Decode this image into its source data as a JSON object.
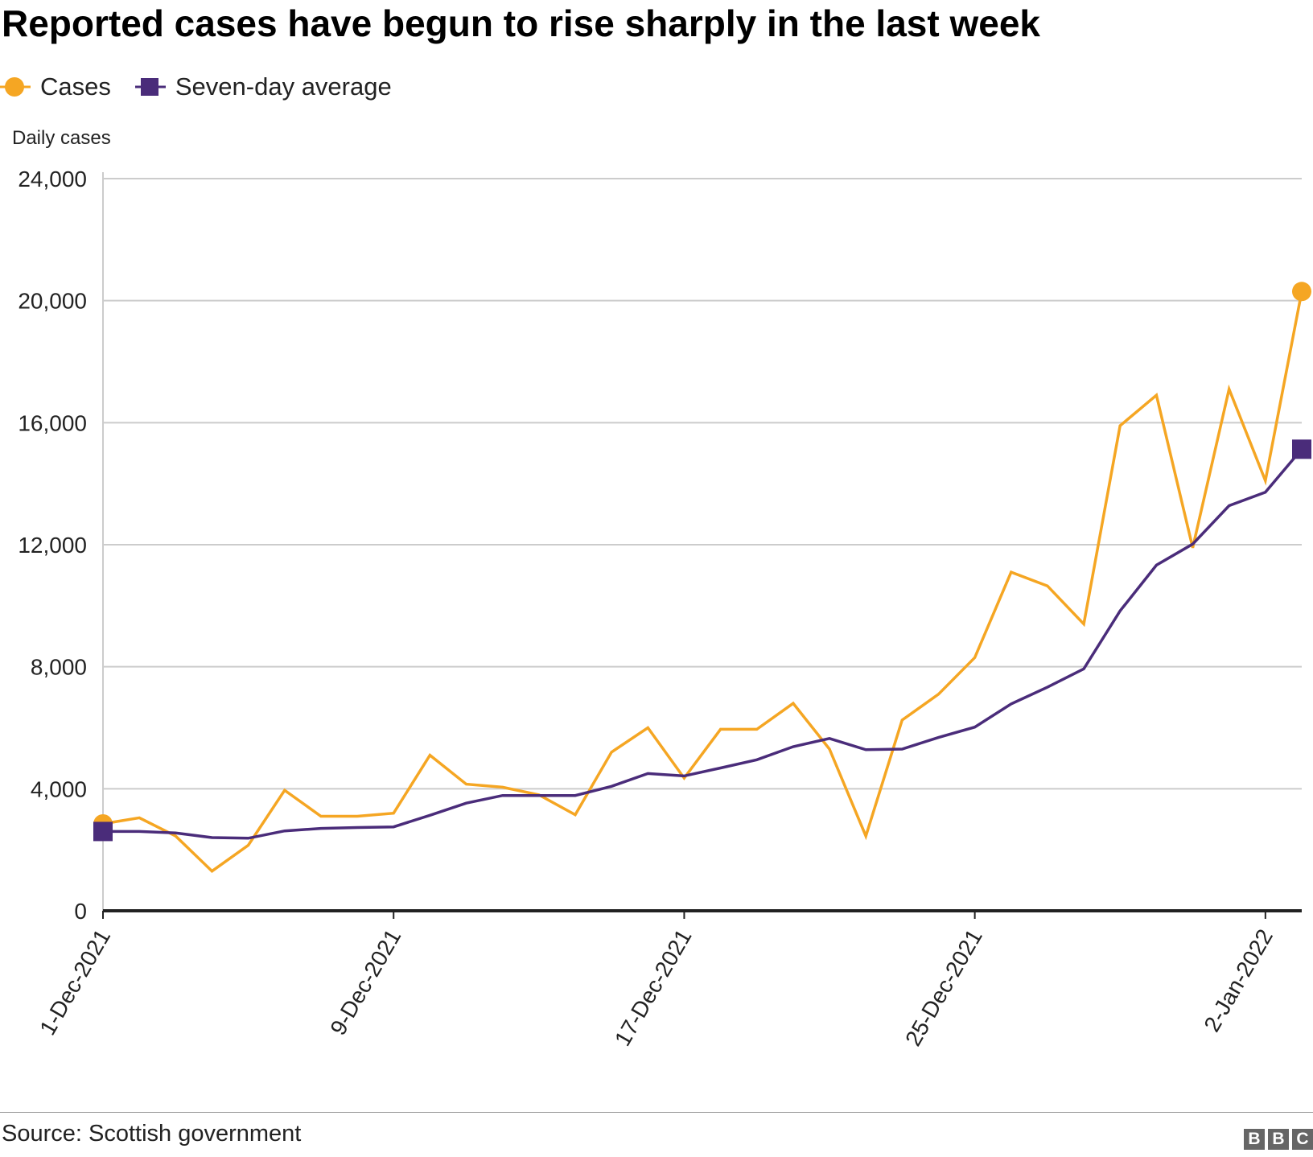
{
  "title": "Reported cases have begun to rise sharply in the last week",
  "source": "Source: Scottish government",
  "logo": {
    "letters": [
      "B",
      "B",
      "C"
    ],
    "color": "#666666"
  },
  "legend": [
    {
      "label": "Cases",
      "marker": "circle",
      "color": "#F5A623"
    },
    {
      "label": "Seven-day average",
      "marker": "square",
      "color": "#4A2C7A"
    }
  ],
  "chart_data": {
    "type": "line",
    "title": "Reported cases have begun to rise sharply in the last week",
    "ylabel": "Daily cases",
    "xlabel": "",
    "ylim": [
      0,
      24000
    ],
    "yticks": [
      0,
      4000,
      8000,
      12000,
      16000,
      20000,
      24000
    ],
    "ytick_labels": [
      "0",
      "4,000",
      "8,000",
      "12,000",
      "16,000",
      "20,000",
      "24,000"
    ],
    "x": [
      "1-Dec-2021",
      "2-Dec-2021",
      "3-Dec-2021",
      "4-Dec-2021",
      "5-Dec-2021",
      "6-Dec-2021",
      "7-Dec-2021",
      "8-Dec-2021",
      "9-Dec-2021",
      "10-Dec-2021",
      "11-Dec-2021",
      "12-Dec-2021",
      "13-Dec-2021",
      "14-Dec-2021",
      "15-Dec-2021",
      "16-Dec-2021",
      "17-Dec-2021",
      "18-Dec-2021",
      "19-Dec-2021",
      "20-Dec-2021",
      "21-Dec-2021",
      "22-Dec-2021",
      "23-Dec-2021",
      "24-Dec-2021",
      "25-Dec-2021",
      "26-Dec-2021",
      "27-Dec-2021",
      "28-Dec-2021",
      "29-Dec-2021",
      "30-Dec-2021",
      "31-Dec-2021",
      "1-Jan-2022",
      "2-Jan-2022",
      "3-Jan-2022"
    ],
    "xtick_labels": [
      {
        "index": 0,
        "label": "1-Dec-2021"
      },
      {
        "index": 8,
        "label": "9-Dec-2021"
      },
      {
        "index": 16,
        "label": "17-Dec-2021"
      },
      {
        "index": 24,
        "label": "25-Dec-2021"
      },
      {
        "index": 32,
        "label": "2-Jan-2022"
      }
    ],
    "grid": true,
    "legend_position": "top-left",
    "series": [
      {
        "name": "Cases",
        "color": "#F5A623",
        "end_marker": "circle",
        "values": [
          2850,
          3050,
          2450,
          1300,
          2150,
          3950,
          3100,
          3100,
          3200,
          5100,
          4150,
          4050,
          3800,
          3150,
          5200,
          6000,
          4350,
          5950,
          5950,
          6800,
          5300,
          2450,
          6250,
          7100,
          8300,
          11100,
          10650,
          9400,
          15900,
          16900,
          11900,
          17100,
          14100,
          20300
        ]
      },
      {
        "name": "Seven-day average",
        "color": "#4A2C7A",
        "end_marker": "square",
        "values": [
          2600,
          2600,
          2550,
          2400,
          2380,
          2620,
          2700,
          2730,
          2750,
          3130,
          3530,
          3780,
          3780,
          3780,
          4080,
          4500,
          4420,
          4680,
          4950,
          5380,
          5650,
          5280,
          5300,
          5680,
          6020,
          6780,
          7330,
          7930,
          9830,
          11330,
          12020,
          13280,
          13720,
          15130
        ]
      }
    ]
  }
}
